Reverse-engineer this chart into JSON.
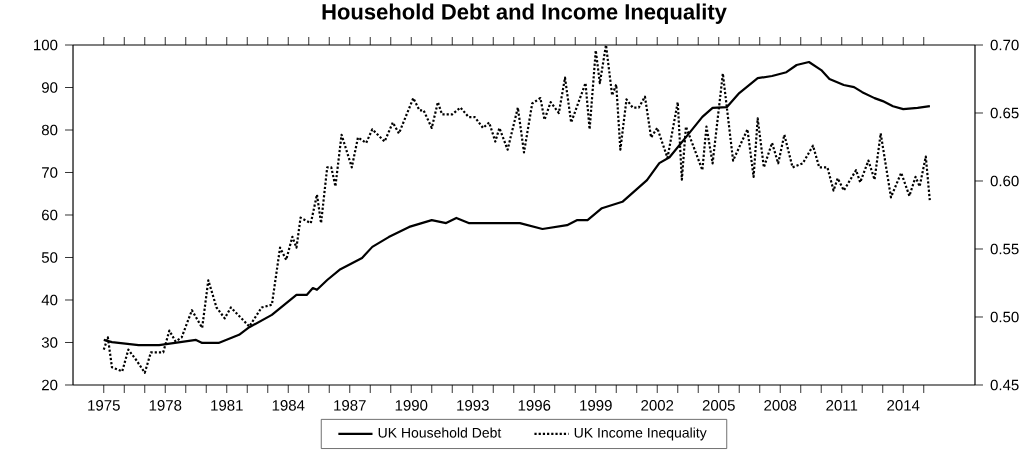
{
  "chart_data": {
    "type": "line",
    "title": "Household Debt and Income Inequality",
    "xlim": [
      1973.5,
      2017.5
    ],
    "xticks": [
      1975,
      {
        "value": 1976,
        "label": null
      },
      {
        "value": 1977,
        "label": null
      },
      1978,
      {
        "value": 1979,
        "label": null
      },
      {
        "value": 1980,
        "label": null
      },
      1981,
      {
        "value": 1982,
        "label": null
      },
      {
        "value": 1983,
        "label": null
      },
      1984,
      {
        "value": 1985,
        "label": null
      },
      {
        "value": 1986,
        "label": null
      },
      1987,
      {
        "value": 1988,
        "label": null
      },
      {
        "value": 1989,
        "label": null
      },
      1990,
      {
        "value": 1991,
        "label": null
      },
      {
        "value": 1992,
        "label": null
      },
      1993,
      {
        "value": 1994,
        "label": null
      },
      {
        "value": 1995,
        "label": null
      },
      1996,
      {
        "value": 1997,
        "label": null
      },
      {
        "value": 1998,
        "label": null
      },
      1999,
      {
        "value": 2000,
        "label": null
      },
      {
        "value": 2001,
        "label": null
      },
      2002,
      {
        "value": 2003,
        "label": null
      },
      {
        "value": 2004,
        "label": null
      },
      2005,
      {
        "value": 2006,
        "label": null
      },
      {
        "value": 2007,
        "label": null
      },
      2008,
      {
        "value": 2009,
        "label": null
      },
      {
        "value": 2010,
        "label": null
      },
      2011,
      {
        "value": 2012,
        "label": null
      },
      {
        "value": 2013,
        "label": null
      },
      2014,
      {
        "value": 2015,
        "label": null
      }
    ],
    "ylim": [
      20,
      100
    ],
    "yticks": [
      20,
      30,
      40,
      50,
      60,
      70,
      80,
      90,
      100
    ],
    "y2lim": [
      0.45,
      0.7
    ],
    "y2ticks": [
      0.45,
      {
        "value": 0.5,
        "label": "0.50"
      },
      0.55,
      {
        "value": 0.6,
        "label": "0.60"
      },
      0.65,
      {
        "value": 0.7,
        "label": "0.70"
      }
    ],
    "legend": "bottom",
    "series": [
      {
        "name": "UK Household Debt",
        "color": "#000000",
        "line_style": "solid",
        "axis": "y",
        "x": [
          1975.0,
          1975.4,
          1976.7,
          1977.7,
          1979.5,
          1979.8,
          1980.6,
          1981.6,
          1982.1,
          1983.2,
          1984.4,
          1984.9,
          1985.2,
          1985.4,
          1985.9,
          1986.5,
          1987.6,
          1988.1,
          1988.9,
          1989.9,
          1991.0,
          1991.7,
          1992.2,
          1992.8,
          1995.3,
          1996.4,
          1997.6,
          1998.1,
          1998.6,
          1999.3,
          2000.3,
          2001.5,
          2002.1,
          2002.6,
          2003.6,
          2004.2,
          2004.7,
          2005.4,
          2006.0,
          2006.9,
          2007.6,
          2008.3,
          2008.8,
          2009.4,
          2010.0,
          2010.4,
          2011.1,
          2011.6,
          2012.0,
          2012.6,
          2013.0,
          2013.5,
          2014.0,
          2014.7,
          2015.3
        ],
        "values": [
          30.6,
          30.1,
          29.4,
          29.4,
          30.6,
          29.9,
          29.9,
          31.8,
          33.6,
          36.5,
          41.2,
          41.2,
          42.8,
          42.4,
          44.7,
          47.1,
          49.9,
          52.5,
          54.8,
          57.2,
          58.8,
          58.1,
          59.3,
          58.1,
          58.1,
          56.7,
          57.6,
          58.8,
          58.8,
          61.6,
          63.1,
          68.2,
          72.2,
          73.6,
          79.5,
          83.1,
          85.2,
          85.4,
          88.7,
          92.2,
          92.7,
          93.6,
          95.3,
          96.0,
          94.1,
          92.0,
          90.6,
          90.1,
          88.9,
          87.5,
          86.8,
          85.6,
          84.9,
          85.2,
          85.6
        ]
      },
      {
        "name": "UK Income Inequality",
        "color": "#000000",
        "line_style": "dotted",
        "axis": "y2",
        "x": [
          1975.0,
          1975.2,
          1975.4,
          1975.9,
          1976.2,
          1976.6,
          1977.0,
          1977.3,
          1977.9,
          1978.2,
          1978.5,
          1978.8,
          1979.3,
          1979.8,
          1980.1,
          1980.5,
          1980.9,
          1981.2,
          1982.1,
          1982.7,
          1983.2,
          1983.6,
          1983.9,
          1984.2,
          1984.4,
          1984.6,
          1985.1,
          1985.4,
          1985.6,
          1985.9,
          1986.1,
          1986.3,
          1986.6,
          1987.1,
          1987.4,
          1987.8,
          1988.1,
          1988.7,
          1989.1,
          1989.4,
          1990.1,
          1990.4,
          1990.6,
          1991.0,
          1991.3,
          1991.5,
          1992.0,
          1992.4,
          1992.8,
          1993.1,
          1993.5,
          1993.8,
          1994.1,
          1994.3,
          1994.7,
          1995.2,
          1995.5,
          1995.9,
          1996.3,
          1996.5,
          1996.8,
          1997.2,
          1997.5,
          1997.8,
          1998.5,
          1998.7,
          1999.0,
          1999.2,
          1999.5,
          1999.8,
          2000.0,
          2000.2,
          2000.5,
          2000.8,
          2001.1,
          2001.4,
          2001.7,
          2002.0,
          2002.5,
          2003.0,
          2003.2,
          2003.4,
          2004.2,
          2004.4,
          2004.7,
          2005.2,
          2005.7,
          2006.4,
          2006.7,
          2006.9,
          2007.2,
          2007.6,
          2007.9,
          2008.2,
          2008.6,
          2009.1,
          2009.6,
          2009.9,
          2010.3,
          2010.6,
          2010.8,
          2011.1,
          2011.7,
          2011.9,
          2012.3,
          2012.6,
          2012.9,
          2013.4,
          2013.9,
          2014.3,
          2014.6,
          2014.8,
          2015.1,
          2015.3
        ],
        "values": [
          0.476,
          0.485,
          0.463,
          0.46,
          0.476,
          0.468,
          0.459,
          0.474,
          0.474,
          0.49,
          0.482,
          0.485,
          0.505,
          0.492,
          0.527,
          0.507,
          0.499,
          0.507,
          0.493,
          0.507,
          0.509,
          0.551,
          0.542,
          0.559,
          0.551,
          0.573,
          0.569,
          0.59,
          0.569,
          0.61,
          0.61,
          0.596,
          0.634,
          0.61,
          0.632,
          0.628,
          0.638,
          0.629,
          0.643,
          0.635,
          0.661,
          0.652,
          0.652,
          0.639,
          0.658,
          0.649,
          0.649,
          0.654,
          0.647,
          0.647,
          0.639,
          0.643,
          0.629,
          0.639,
          0.623,
          0.654,
          0.621,
          0.657,
          0.661,
          0.645,
          0.658,
          0.65,
          0.676,
          0.643,
          0.672,
          0.638,
          0.696,
          0.672,
          0.7,
          0.663,
          0.671,
          0.623,
          0.66,
          0.654,
          0.654,
          0.662,
          0.632,
          0.639,
          0.617,
          0.658,
          0.601,
          0.64,
          0.608,
          0.64,
          0.613,
          0.679,
          0.615,
          0.638,
          0.603,
          0.646,
          0.61,
          0.628,
          0.613,
          0.634,
          0.61,
          0.613,
          0.626,
          0.61,
          0.61,
          0.593,
          0.602,
          0.593,
          0.608,
          0.599,
          0.615,
          0.601,
          0.635,
          0.588,
          0.606,
          0.589,
          0.603,
          0.596,
          0.618,
          0.585
        ]
      }
    ]
  }
}
